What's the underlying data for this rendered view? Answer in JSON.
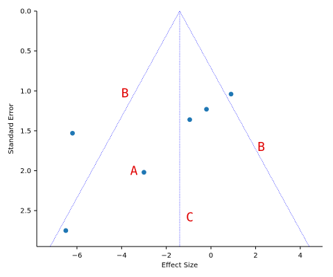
{
  "chart_data": {
    "type": "scatter",
    "xlabel": "Effect Size",
    "ylabel": "Standard Error",
    "xlim": [
      -7.8,
      5.0
    ],
    "ylim": [
      2.95,
      0.0
    ],
    "y_inverted": true,
    "x_ticks": [
      -6,
      -4,
      -2,
      0,
      2,
      4
    ],
    "y_ticks": [
      0.0,
      0.5,
      1.0,
      1.5,
      2.0,
      2.5
    ],
    "x_tick_labels": [
      "−6",
      "−4",
      "−2",
      "0",
      "2",
      "4"
    ],
    "y_tick_labels": [
      "0.0",
      "0.5",
      "1.0",
      "1.5",
      "2.0",
      "2.5"
    ],
    "points": [
      {
        "x": -6.2,
        "y": 1.53
      },
      {
        "x": -6.5,
        "y": 2.75
      },
      {
        "x": -3.0,
        "y": 2.02
      },
      {
        "x": -0.95,
        "y": 1.36
      },
      {
        "x": -0.2,
        "y": 1.23
      },
      {
        "x": 0.9,
        "y": 1.04
      }
    ],
    "point_color": "#1f77b4",
    "funnel": {
      "apex_x": -1.4,
      "apex_y": 0.0,
      "left_bottom_x": -7.2,
      "right_bottom_x": 4.4,
      "bottom_y": 2.95,
      "color": "#0000ff",
      "style": "dotted"
    },
    "annotations": [
      {
        "text": "B",
        "x": -3.85,
        "y": 1.03,
        "color": "#e00000"
      },
      {
        "text": "B",
        "x": 2.25,
        "y": 1.7,
        "color": "#e00000"
      },
      {
        "text": "A",
        "x": -3.45,
        "y": 2.0,
        "color": "#e00000"
      },
      {
        "text": "C",
        "x": -0.95,
        "y": 2.58,
        "color": "#e00000"
      }
    ],
    "grid": false
  }
}
